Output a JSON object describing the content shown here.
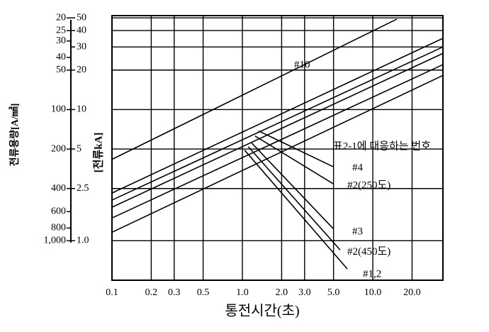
{
  "chart_data": {
    "type": "line",
    "x_label": "통전시간(초)",
    "y_label": "[전류kA]",
    "y2_label": "전류용량[A/㎟]",
    "annotation": "표2-1에 대응하는 번호",
    "log_x": true,
    "log_y": true,
    "grid": true,
    "color": "#000000",
    "xlim": [
      0.1,
      34.5
    ],
    "xticks": [
      0.1,
      0.2,
      0.3,
      0.5,
      {
        "value": 1,
        "label": "1.0"
      },
      {
        "value": 2,
        "label": "2.0"
      },
      {
        "value": 3,
        "label": "3.0"
      },
      {
        "value": 5,
        "label": "5.0"
      },
      {
        "value": 10,
        "label": "10.0"
      },
      {
        "value": 20,
        "label": "20.0"
      }
    ],
    "ylim": [
      0.5,
      52
    ],
    "yticks": [
      50,
      40,
      30,
      20,
      10,
      5,
      2.5,
      {
        "value": 1,
        "label": "1.0"
      }
    ],
    "y2lim": [
      2000,
      19.2
    ],
    "y2ticks": [
      20,
      25,
      30,
      40,
      50,
      100,
      200,
      400,
      600,
      800,
      {
        "value": 1000,
        "label": "1,000"
      }
    ],
    "series": [
      {
        "name": "#10",
        "x": [
          0.1,
          15.3
        ],
        "values": [
          4.17,
          48.9
        ]
      },
      {
        "x": [
          0.1,
          34.5
        ],
        "values": [
          2.31,
          34.9
        ]
      },
      {
        "x": [
          0.1,
          34.5
        ],
        "values": [
          2.04,
          30
        ]
      },
      {
        "x": [
          0.1,
          34.5
        ],
        "values": [
          1.8,
          26.8
        ]
      },
      {
        "x": [
          0.1,
          34.5
        ],
        "values": [
          1.49,
          22
        ]
      },
      {
        "x": [
          0.1,
          34.5
        ],
        "values": [
          1.16,
          18.2
        ]
      },
      {
        "name": "#4",
        "x": [
          1.33,
          4.96
        ],
        "values": [
          6.87,
          3.67
        ]
      },
      {
        "name": "#2(250도)",
        "x": [
          1.25,
          4.96
        ],
        "values": [
          6.29,
          2.72
        ]
      },
      {
        "name": "#3",
        "x": [
          1.18,
          4.96
        ],
        "values": [
          5.55,
          1.24
        ]
      },
      {
        "name": "#2(450도)",
        "x": [
          1.11,
          5.62
        ],
        "values": [
          5.21,
          0.85
        ]
      },
      {
        "name": "#1,2",
        "x": [
          1.04,
          6.37
        ],
        "values": [
          4.9,
          0.61
        ]
      }
    ]
  }
}
